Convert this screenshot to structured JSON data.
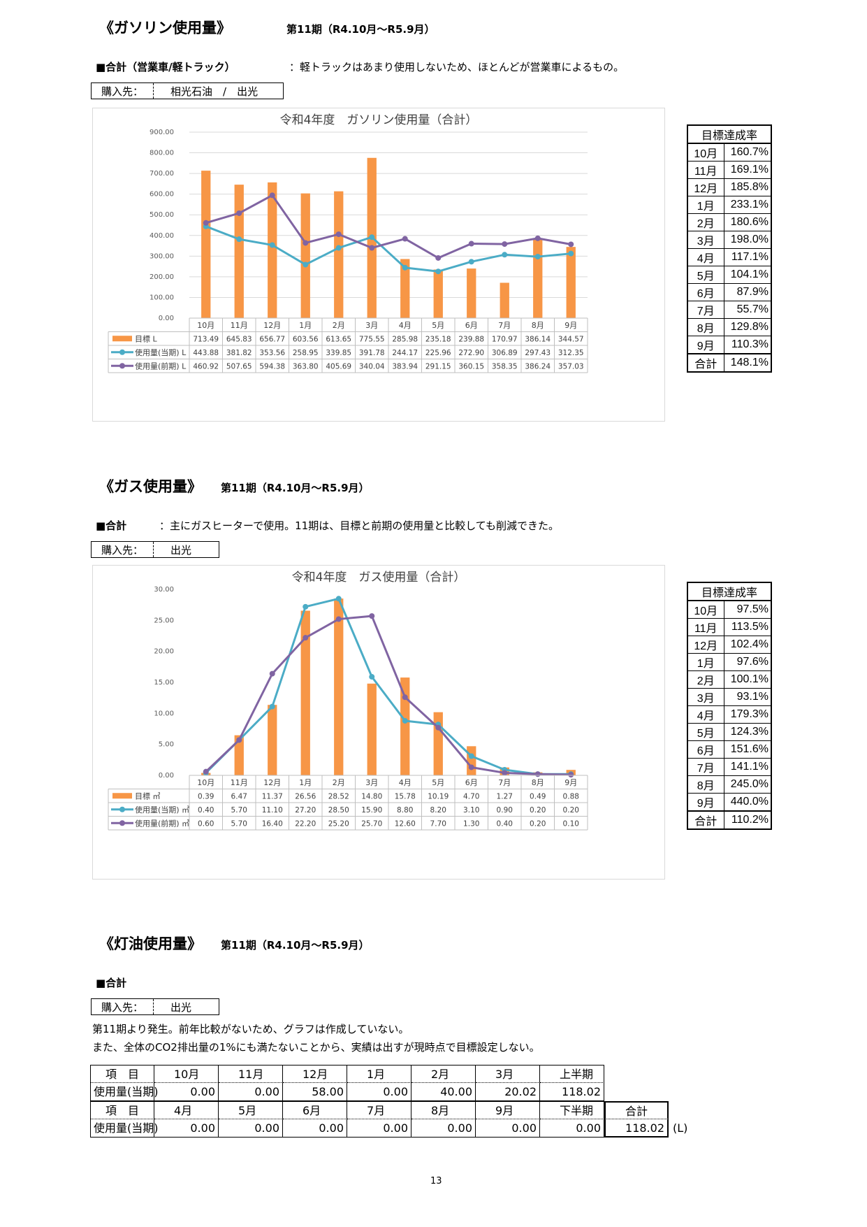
{
  "gasoline": {
    "title": "《ガソリン使用量》",
    "period": "第11期（R4.10月～R5.9月）",
    "subtitle_label": "■合計（営業車/軽トラック）",
    "subtitle_note": "：軽トラックはあまり使用しないため、ほとんどが営業車によるもの。",
    "buy_label": "購入先：",
    "buy_value": "相光石油　/　出光",
    "rate_header": "目標達成率",
    "rates": [
      {
        "m": "10月",
        "v": "160.7%"
      },
      {
        "m": "11月",
        "v": "169.1%"
      },
      {
        "m": "12月",
        "v": "185.8%"
      },
      {
        "m": "1月",
        "v": "233.1%"
      },
      {
        "m": "2月",
        "v": "180.6%"
      },
      {
        "m": "3月",
        "v": "198.0%"
      },
      {
        "m": "4月",
        "v": "117.1%"
      },
      {
        "m": "5月",
        "v": "104.1%"
      },
      {
        "m": "6月",
        "v": "87.9%"
      },
      {
        "m": "7月",
        "v": "55.7%"
      },
      {
        "m": "8月",
        "v": "129.8%"
      },
      {
        "m": "9月",
        "v": "110.3%"
      },
      {
        "m": "合計",
        "v": "148.1%"
      }
    ]
  },
  "gas": {
    "title": "《ガス使用量》",
    "period": "第11期（R4.10月～R5.9月）",
    "subtitle_label": "■合計",
    "subtitle_note": "：主にガスヒーターで使用。11期は、目標と前期の使用量と比較しても削減できた。",
    "buy_label": "購入先：",
    "buy_value": "出光",
    "rate_header": "目標達成率",
    "rates": [
      {
        "m": "10月",
        "v": "97.5%"
      },
      {
        "m": "11月",
        "v": "113.5%"
      },
      {
        "m": "12月",
        "v": "102.4%"
      },
      {
        "m": "1月",
        "v": "97.6%"
      },
      {
        "m": "2月",
        "v": "100.1%"
      },
      {
        "m": "3月",
        "v": "93.1%"
      },
      {
        "m": "4月",
        "v": "179.3%"
      },
      {
        "m": "5月",
        "v": "124.3%"
      },
      {
        "m": "6月",
        "v": "151.6%"
      },
      {
        "m": "7月",
        "v": "141.1%"
      },
      {
        "m": "8月",
        "v": "245.0%"
      },
      {
        "m": "9月",
        "v": "440.0%"
      },
      {
        "m": "合計",
        "v": "110.2%"
      }
    ]
  },
  "kerosene": {
    "title": "《灯油使用量》",
    "period": "第11期（R4.10月～R5.9月）",
    "subtitle_label": "■合計",
    "buy_label": "購入先：",
    "buy_value": "出光",
    "note1": "第11期より発生。前年比較がないため、グラフは作成していない。",
    "note2": "また、全体のCO2排出量の1%にも満たないことから、実績は出すが現時点で目標設定しない。",
    "item_label": "項　目",
    "row_label": "使用量(当期)",
    "first_half_months": [
      "10月",
      "11月",
      "12月",
      "1月",
      "2月",
      "3月",
      "上半期"
    ],
    "first_half_values": [
      "0.00",
      "0.00",
      "58.00",
      "0.00",
      "40.00",
      "20.02",
      "118.02"
    ],
    "second_half_months": [
      "4月",
      "5月",
      "6月",
      "7月",
      "8月",
      "9月",
      "下半期"
    ],
    "second_half_values": [
      "0.00",
      "0.00",
      "0.00",
      "0.00",
      "0.00",
      "0.00",
      "0.00"
    ],
    "total_label": "合計",
    "total_value": "118.02",
    "unit": "(L)"
  },
  "page_number": "13",
  "chart_data": [
    {
      "type": "bar",
      "title": "令和4年度　ガソリン使用量（合計）",
      "categories": [
        "10月",
        "11月",
        "12月",
        "1月",
        "2月",
        "3月",
        "4月",
        "5月",
        "6月",
        "7月",
        "8月",
        "9月"
      ],
      "ylim": [
        0,
        900
      ],
      "yticks": [
        "0.00",
        "100.00",
        "200.00",
        "300.00",
        "400.00",
        "500.00",
        "600.00",
        "700.00",
        "800.00",
        "900.00"
      ],
      "yticks_values": [
        0,
        100,
        200,
        300,
        400,
        500,
        600,
        700,
        800,
        900
      ],
      "series": [
        {
          "name": "目標 L",
          "kind": "bar",
          "color": "#f79646",
          "values": [
            713.49,
            645.83,
            656.77,
            603.56,
            613.65,
            775.55,
            285.98,
            235.18,
            239.88,
            170.97,
            386.14,
            344.57
          ],
          "labels": [
            "713.49",
            "645.83",
            "656.77",
            "603.56",
            "613.65",
            "775.55",
            "285.98",
            "235.18",
            "239.88",
            "170.97",
            "386.14",
            "344.57"
          ]
        },
        {
          "name": "使用量(当期) L",
          "kind": "line",
          "color": "#4bacc6",
          "values": [
            443.88,
            381.82,
            353.56,
            258.95,
            339.85,
            391.78,
            244.17,
            225.96,
            272.9,
            306.89,
            297.43,
            312.35
          ],
          "labels": [
            "443.88",
            "381.82",
            "353.56",
            "258.95",
            "339.85",
            "391.78",
            "244.17",
            "225.96",
            "272.90",
            "306.89",
            "297.43",
            "312.35"
          ]
        },
        {
          "name": "使用量(前期) L",
          "kind": "line",
          "color": "#8064a2",
          "values": [
            460.92,
            507.65,
            594.38,
            363.8,
            405.69,
            340.04,
            383.94,
            291.15,
            360.15,
            358.35,
            386.24,
            357.03
          ],
          "labels": [
            "460.92",
            "507.65",
            "594.38",
            "363.80",
            "405.69",
            "340.04",
            "383.94",
            "291.15",
            "360.15",
            "358.35",
            "386.24",
            "357.03"
          ]
        }
      ],
      "grid": true,
      "legend": "data-table"
    },
    {
      "type": "bar",
      "title": "令和4年度　ガス使用量（合計）",
      "categories": [
        "10月",
        "11月",
        "12月",
        "1月",
        "2月",
        "3月",
        "4月",
        "5月",
        "6月",
        "7月",
        "8月",
        "9月"
      ],
      "ylim": [
        0,
        30
      ],
      "yticks": [
        "0.00",
        "5.00",
        "10.00",
        "15.00",
        "20.00",
        "25.00",
        "30.00"
      ],
      "yticks_values": [
        0,
        5,
        10,
        15,
        20,
        25,
        30
      ],
      "series": [
        {
          "name": "目標 ㎥",
          "kind": "bar",
          "color": "#f79646",
          "values": [
            0.39,
            6.47,
            11.37,
            26.56,
            28.52,
            14.8,
            15.78,
            10.19,
            4.7,
            1.27,
            0.49,
            0.88
          ],
          "labels": [
            "0.39",
            "6.47",
            "11.37",
            "26.56",
            "28.52",
            "14.80",
            "15.78",
            "10.19",
            "4.70",
            "1.27",
            "0.49",
            "0.88"
          ]
        },
        {
          "name": "使用量(当期) ㎥",
          "kind": "line",
          "color": "#4bacc6",
          "values": [
            0.4,
            5.7,
            11.1,
            27.2,
            28.5,
            15.9,
            8.8,
            8.2,
            3.1,
            0.9,
            0.2,
            0.2
          ],
          "labels": [
            "0.40",
            "5.70",
            "11.10",
            "27.20",
            "28.50",
            "15.90",
            "8.80",
            "8.20",
            "3.10",
            "0.90",
            "0.20",
            "0.20"
          ]
        },
        {
          "name": "使用量(前期) ㎥",
          "kind": "line",
          "color": "#8064a2",
          "values": [
            0.6,
            5.7,
            16.4,
            22.2,
            25.2,
            25.7,
            12.6,
            7.7,
            1.3,
            0.4,
            0.2,
            0.1
          ],
          "labels": [
            "0.60",
            "5.70",
            "16.40",
            "22.20",
            "25.20",
            "25.70",
            "12.60",
            "7.70",
            "1.30",
            "0.40",
            "0.20",
            "0.10"
          ]
        }
      ],
      "grid": false,
      "legend": "data-table"
    }
  ]
}
